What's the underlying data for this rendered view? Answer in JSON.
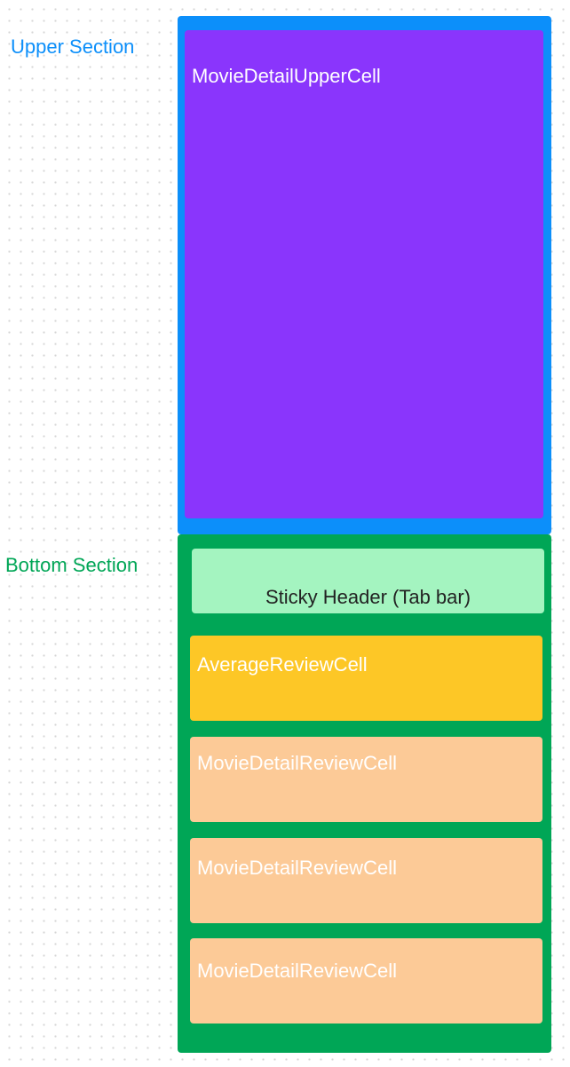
{
  "labels": {
    "upper_section": "Upper Section",
    "bottom_section": "Bottom Section"
  },
  "upper_section": {
    "upper_cell": "MovieDetailUpperCell"
  },
  "bottom_section": {
    "sticky_header": "Sticky Header (Tab bar)",
    "average_review_cell": "AverageReviewCell",
    "review_cells": [
      "MovieDetailReviewCell",
      "MovieDetailReviewCell",
      "MovieDetailReviewCell"
    ]
  },
  "colors": {
    "upper_section": "#0c8ffa",
    "upper_label": "#0c8ffa",
    "upper_cell": "#8a35fc",
    "bottom_section": "#00a656",
    "bottom_label": "#00a656",
    "sticky_header": "#a4f4c0",
    "average_review_cell": "#fdc726",
    "review_cell": "#fcca97",
    "light_text": "#ffffff",
    "dark_text": "#222222"
  }
}
